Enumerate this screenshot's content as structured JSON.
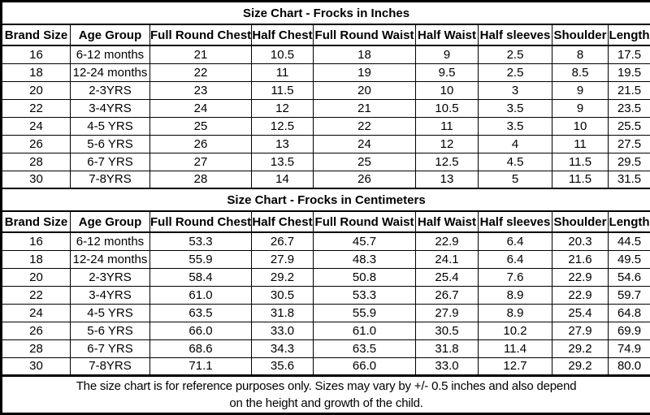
{
  "page": {
    "background": "#ffffff",
    "border_color": "#000000",
    "text_color": "#000000"
  },
  "chart_data": [
    {
      "type": "table",
      "title": "Size Chart - Frocks in Inches",
      "columns": [
        "Brand Size",
        "Age Group",
        "Full Round Chest",
        "Half Chest",
        "Full Round Waist",
        "Half Waist",
        "Half sleeves",
        "Shoulder",
        "Length"
      ],
      "rows": [
        [
          "16",
          "6-12 months",
          "21",
          "10.5",
          "18",
          "9",
          "2.5",
          "8",
          "17.5"
        ],
        [
          "18",
          "12-24 months",
          "22",
          "11",
          "19",
          "9.5",
          "2.5",
          "8.5",
          "19.5"
        ],
        [
          "20",
          "2-3YRS",
          "23",
          "11.5",
          "20",
          "10",
          "3",
          "9",
          "21.5"
        ],
        [
          "22",
          "3-4YRS",
          "24",
          "12",
          "21",
          "10.5",
          "3.5",
          "9",
          "23.5"
        ],
        [
          "24",
          "4-5 YRS",
          "25",
          "12.5",
          "22",
          "11",
          "3.5",
          "10",
          "25.5"
        ],
        [
          "26",
          "5-6 YRS",
          "26",
          "13",
          "24",
          "12",
          "4",
          "11",
          "27.5"
        ],
        [
          "28",
          "6-7 YRS",
          "27",
          "13.5",
          "25",
          "12.5",
          "4.5",
          "11.5",
          "29.5"
        ],
        [
          "30",
          "7-8YRS",
          "28",
          "14",
          "26",
          "13",
          "5",
          "11.5",
          "31.5"
        ]
      ]
    },
    {
      "type": "table",
      "title": "Size Chart - Frocks in Centimeters",
      "columns": [
        "Brand Size",
        "Age Group",
        "Full Round Chest",
        "Half Chest",
        "Full Round Waist",
        "Half Waist",
        "Half sleeves",
        "Shoulder",
        "Length"
      ],
      "rows": [
        [
          "16",
          "6-12 months",
          "53.3",
          "26.7",
          "45.7",
          "22.9",
          "6.4",
          "20.3",
          "44.5"
        ],
        [
          "18",
          "12-24 months",
          "55.9",
          "27.9",
          "48.3",
          "24.1",
          "6.4",
          "21.6",
          "49.5"
        ],
        [
          "20",
          "2-3YRS",
          "58.4",
          "29.2",
          "50.8",
          "25.4",
          "7.6",
          "22.9",
          "54.6"
        ],
        [
          "22",
          "3-4YRS",
          "61.0",
          "30.5",
          "53.3",
          "26.7",
          "8.9",
          "22.9",
          "59.7"
        ],
        [
          "24",
          "4-5 YRS",
          "63.5",
          "31.8",
          "55.9",
          "27.9",
          "8.9",
          "25.4",
          "64.8"
        ],
        [
          "26",
          "5-6 YRS",
          "66.0",
          "33.0",
          "61.0",
          "30.5",
          "10.2",
          "27.9",
          "69.9"
        ],
        [
          "28",
          "6-7 YRS",
          "68.6",
          "34.3",
          "63.5",
          "31.8",
          "11.4",
          "29.2",
          "74.9"
        ],
        [
          "30",
          "7-8YRS",
          "71.1",
          "35.6",
          "66.0",
          "33.0",
          "12.7",
          "29.2",
          "80.0"
        ]
      ]
    }
  ],
  "footer": {
    "line1": "The size chart is for reference purposes only. Sizes may vary by +/- 0.5 inches and also depend",
    "line2": "on the height and growth of the child."
  }
}
